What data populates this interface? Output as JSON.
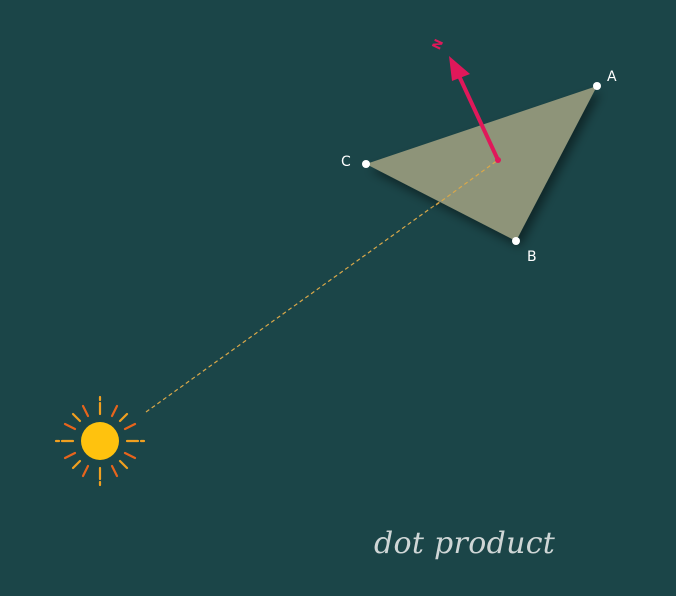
{
  "caption": "dot product",
  "vertices": {
    "a": "A",
    "b": "B",
    "c": "C"
  },
  "normal": {
    "label": "N"
  },
  "colors": {
    "background": "#1b4548",
    "triangle_fill": "#8e9479",
    "normal_arrow": "#e0185a",
    "light_ray": "#d9a84a",
    "sun_core": "#ffc20e",
    "sun_rays_outer": "#f0a020",
    "sun_rays_inner": "#e8641c",
    "vertex_dot": "#ffffff"
  },
  "icons": {
    "light_source": "sun-icon"
  }
}
